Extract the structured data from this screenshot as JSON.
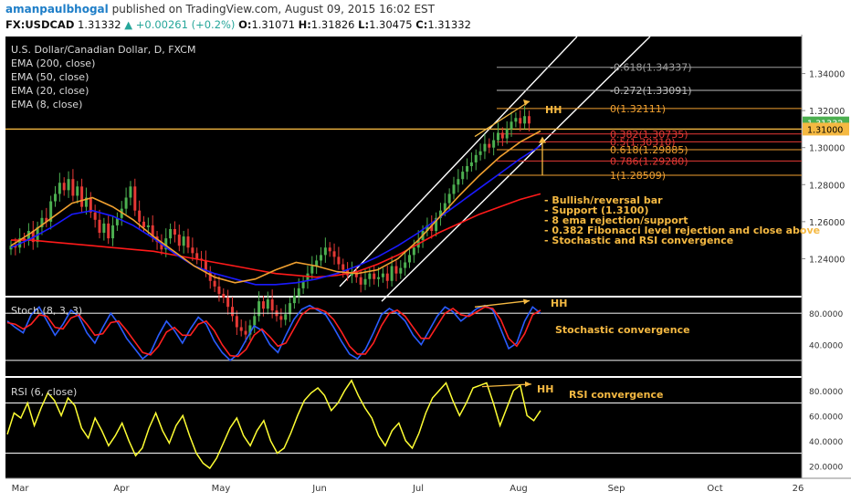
{
  "header": {
    "author": "amanpaulbhogal",
    "published_text": "published on TradingView.com, August 09, 2015 16:02 EST",
    "symbol": "FX:USDCAD",
    "last": "1.31332",
    "change": "▲ +0.00261 (+0.2%)",
    "o_label": "O:",
    "o_value": "1.31071",
    "h_label": "H:",
    "h_value": "1.31826",
    "l_label": "L:",
    "l_value": "1.30475",
    "c_label": "C:",
    "c_value": "1.31332"
  },
  "legend": {
    "title": "U.S. Dollar/Canadian Dollar, D, FXCM",
    "ema200": "EMA (200, close)",
    "ema50": "EMA (50, close)",
    "ema20": "EMA (20, close)",
    "ema8": "EMA (8, close)"
  },
  "stoch_label": "Stoch (8, 3, 3)",
  "rsi_label": "RSI (6, close)",
  "notes": {
    "hh_price": "HH",
    "hh_stoch": "HH",
    "hh_rsi": "HH",
    "stoch_conv": "Stochastic convergence",
    "rsi_conv": "RSI convergence",
    "bullets": [
      "- Bullish/reversal bar",
      "- Support (1.3100)",
      "- 8 ema rejection/support",
      "- 0.382 Fibonacci level rejection and close above",
      "- Stochastic and RSI convergence"
    ]
  },
  "fib_levels": [
    {
      "label": "-0.618(1.34337)",
      "price": 1.34337,
      "color": "#9e9e9e"
    },
    {
      "label": "-0.272(1.33091)",
      "price": 1.33091,
      "color": "#bdbdbd"
    },
    {
      "label": "0(1.32111)",
      "price": 1.32111,
      "color": "#f0a030"
    },
    {
      "label": "0.382(1.30735)",
      "price": 1.30735,
      "color": "#e53935"
    },
    {
      "label": "0.5(1.30310)",
      "price": 1.3031,
      "color": "#e53935"
    },
    {
      "label": "0.618(1.29885)",
      "price": 1.29885,
      "color": "#f0a030"
    },
    {
      "label": "0.786(1.29280)",
      "price": 1.2928,
      "color": "#e53935"
    },
    {
      "label": "1(1.28509)",
      "price": 1.28509,
      "color": "#f0a030"
    }
  ],
  "price_tags": [
    {
      "label": "1.31332",
      "price": 1.31332,
      "bg": "#4caf50",
      "fg": "#ffffff"
    },
    {
      "label": "1.31000",
      "price": 1.31,
      "bg": "#f5b942",
      "fg": "#000000"
    }
  ],
  "support_price": 1.31,
  "colors": {
    "background": "#000000",
    "up_candle": "#4caf50",
    "down_candle": "#e53935",
    "ema200": "#ff1a1a",
    "ema50": "#1a1aff",
    "ema20": "#f0a030",
    "support": "#f5b942",
    "annotation": "#f5b942",
    "rsi": "#ffff33",
    "stoch_k": "#2a5cff",
    "stoch_d": "#ff2020"
  },
  "chart_data": [
    {
      "type": "candlestick",
      "title": "U.S. Dollar/Canadian Dollar, D, FXCM",
      "xlabel": "",
      "ylabel": "",
      "x_tick_labels": [
        "Mar",
        "Apr",
        "May",
        "Jun",
        "Jul",
        "Aug",
        "Sep",
        "Oct",
        "26"
      ],
      "y_ticks": [
        1.24,
        1.26,
        1.28,
        1.3,
        1.32,
        1.34
      ],
      "y_tick_labels": [
        "1.24000",
        "1.26000",
        "1.28000",
        "1.30000",
        "1.32000",
        "1.34000"
      ],
      "ylim": [
        1.22,
        1.36
      ],
      "grid": false,
      "candles_close": [
        1.247,
        1.246,
        1.251,
        1.25,
        1.255,
        1.249,
        1.257,
        1.262,
        1.26,
        1.271,
        1.275,
        1.281,
        1.277,
        1.283,
        1.274,
        1.279,
        1.268,
        1.273,
        1.265,
        1.261,
        1.254,
        1.259,
        1.251,
        1.258,
        1.262,
        1.267,
        1.273,
        1.279,
        1.266,
        1.26,
        1.257,
        1.258,
        1.252,
        1.249,
        1.245,
        1.251,
        1.256,
        1.253,
        1.247,
        1.252,
        1.246,
        1.243,
        1.24,
        1.239,
        1.233,
        1.228,
        1.225,
        1.221,
        1.219,
        1.214,
        1.209,
        1.203,
        1.201,
        1.199,
        1.204,
        1.209,
        1.217,
        1.213,
        1.218,
        1.212,
        1.209,
        1.207,
        1.21,
        1.216,
        1.22,
        1.224,
        1.228,
        1.232,
        1.236,
        1.239,
        1.242,
        1.246,
        1.244,
        1.241,
        1.237,
        1.234,
        1.231,
        1.233,
        1.23,
        1.226,
        1.229,
        1.232,
        1.229,
        1.23,
        1.232,
        1.228,
        1.236,
        1.232,
        1.235,
        1.238,
        1.242,
        1.246,
        1.25,
        1.255,
        1.258,
        1.255,
        1.262,
        1.266,
        1.27,
        1.275,
        1.28,
        1.283,
        1.287,
        1.29,
        1.292,
        1.296,
        1.298,
        1.302,
        1.3,
        1.304,
        1.308,
        1.305,
        1.31,
        1.314,
        1.316,
        1.313,
        1.317,
        1.313
      ],
      "series": [
        {
          "name": "EMA (200, close)",
          "values": [
            1.25,
            1.25,
            1.249,
            1.248,
            1.247,
            1.246,
            1.245,
            1.244,
            1.242,
            1.24,
            1.238,
            1.236,
            1.234,
            1.232,
            1.231,
            1.23,
            1.231,
            1.233,
            1.237,
            1.242,
            1.248,
            1.254,
            1.259,
            1.264,
            1.268,
            1.272,
            1.275
          ]
        },
        {
          "name": "EMA (50, close)",
          "values": [
            1.246,
            1.251,
            1.257,
            1.264,
            1.266,
            1.263,
            1.258,
            1.251,
            1.243,
            1.236,
            1.232,
            1.229,
            1.226,
            1.226,
            1.227,
            1.229,
            1.232,
            1.236,
            1.241,
            1.247,
            1.254,
            1.262,
            1.27,
            1.278,
            1.286,
            1.294,
            1.301
          ]
        },
        {
          "name": "EMA (20, close)",
          "values": [
            1.247,
            1.254,
            1.262,
            1.27,
            1.273,
            1.268,
            1.261,
            1.252,
            1.244,
            1.236,
            1.23,
            1.227,
            1.229,
            1.234,
            1.238,
            1.236,
            1.233,
            1.232,
            1.234,
            1.24,
            1.25,
            1.262,
            1.274,
            1.285,
            1.295,
            1.303,
            1.309
          ]
        }
      ]
    },
    {
      "type": "line",
      "title": "Stoch (8, 3, 3)",
      "y_tick_labels": [
        "40.0000",
        "80.0000"
      ],
      "ylim": [
        0,
        100
      ],
      "series": [
        {
          "name": "%K",
          "values": [
            70,
            62,
            55,
            78,
            88,
            70,
            52,
            66,
            84,
            76,
            55,
            42,
            62,
            80,
            66,
            48,
            35,
            22,
            30,
            52,
            70,
            58,
            42,
            60,
            75,
            66,
            45,
            30,
            20,
            28,
            46,
            64,
            58,
            40,
            30,
            52,
            72,
            85,
            90,
            84,
            78,
            62,
            44,
            28,
            22,
            34,
            55,
            78,
            86,
            80,
            70,
            52,
            40,
            58,
            76,
            88,
            82,
            70,
            78,
            86,
            90,
            84,
            60,
            35,
            42,
            70,
            88,
            80
          ]
        },
        {
          "name": "%D",
          "values": [
            68,
            66,
            60,
            66,
            78,
            76,
            62,
            60,
            74,
            78,
            66,
            52,
            54,
            68,
            70,
            58,
            44,
            30,
            27,
            38,
            56,
            62,
            52,
            52,
            66,
            70,
            58,
            40,
            26,
            25,
            34,
            52,
            60,
            50,
            38,
            42,
            60,
            78,
            86,
            86,
            82,
            72,
            56,
            38,
            28,
            28,
            42,
            64,
            80,
            84,
            76,
            62,
            48,
            48,
            64,
            80,
            86,
            78,
            76,
            82,
            88,
            86,
            72,
            48,
            38,
            54,
            78,
            84
          ]
        }
      ]
    },
    {
      "type": "line",
      "title": "RSI (6, close)",
      "y_tick_labels": [
        "20.0000",
        "40.0000",
        "60.0000",
        "80.0000"
      ],
      "ylim": [
        10,
        90
      ],
      "series": [
        {
          "name": "RSI (6, close)",
          "values": [
            45,
            62,
            58,
            70,
            52,
            66,
            78,
            72,
            60,
            74,
            68,
            50,
            42,
            58,
            48,
            36,
            44,
            54,
            40,
            28,
            34,
            50,
            62,
            48,
            38,
            52,
            60,
            44,
            30,
            22,
            18,
            26,
            38,
            50,
            58,
            44,
            36,
            48,
            56,
            40,
            30,
            34,
            46,
            60,
            72,
            78,
            82,
            76,
            64,
            70,
            80,
            88,
            76,
            66,
            58,
            44,
            36,
            48,
            54,
            40,
            34,
            46,
            62,
            74,
            80,
            86,
            72,
            60,
            70,
            82,
            84,
            86,
            70,
            52,
            66,
            80,
            84,
            60,
            56,
            64
          ]
        }
      ]
    }
  ]
}
